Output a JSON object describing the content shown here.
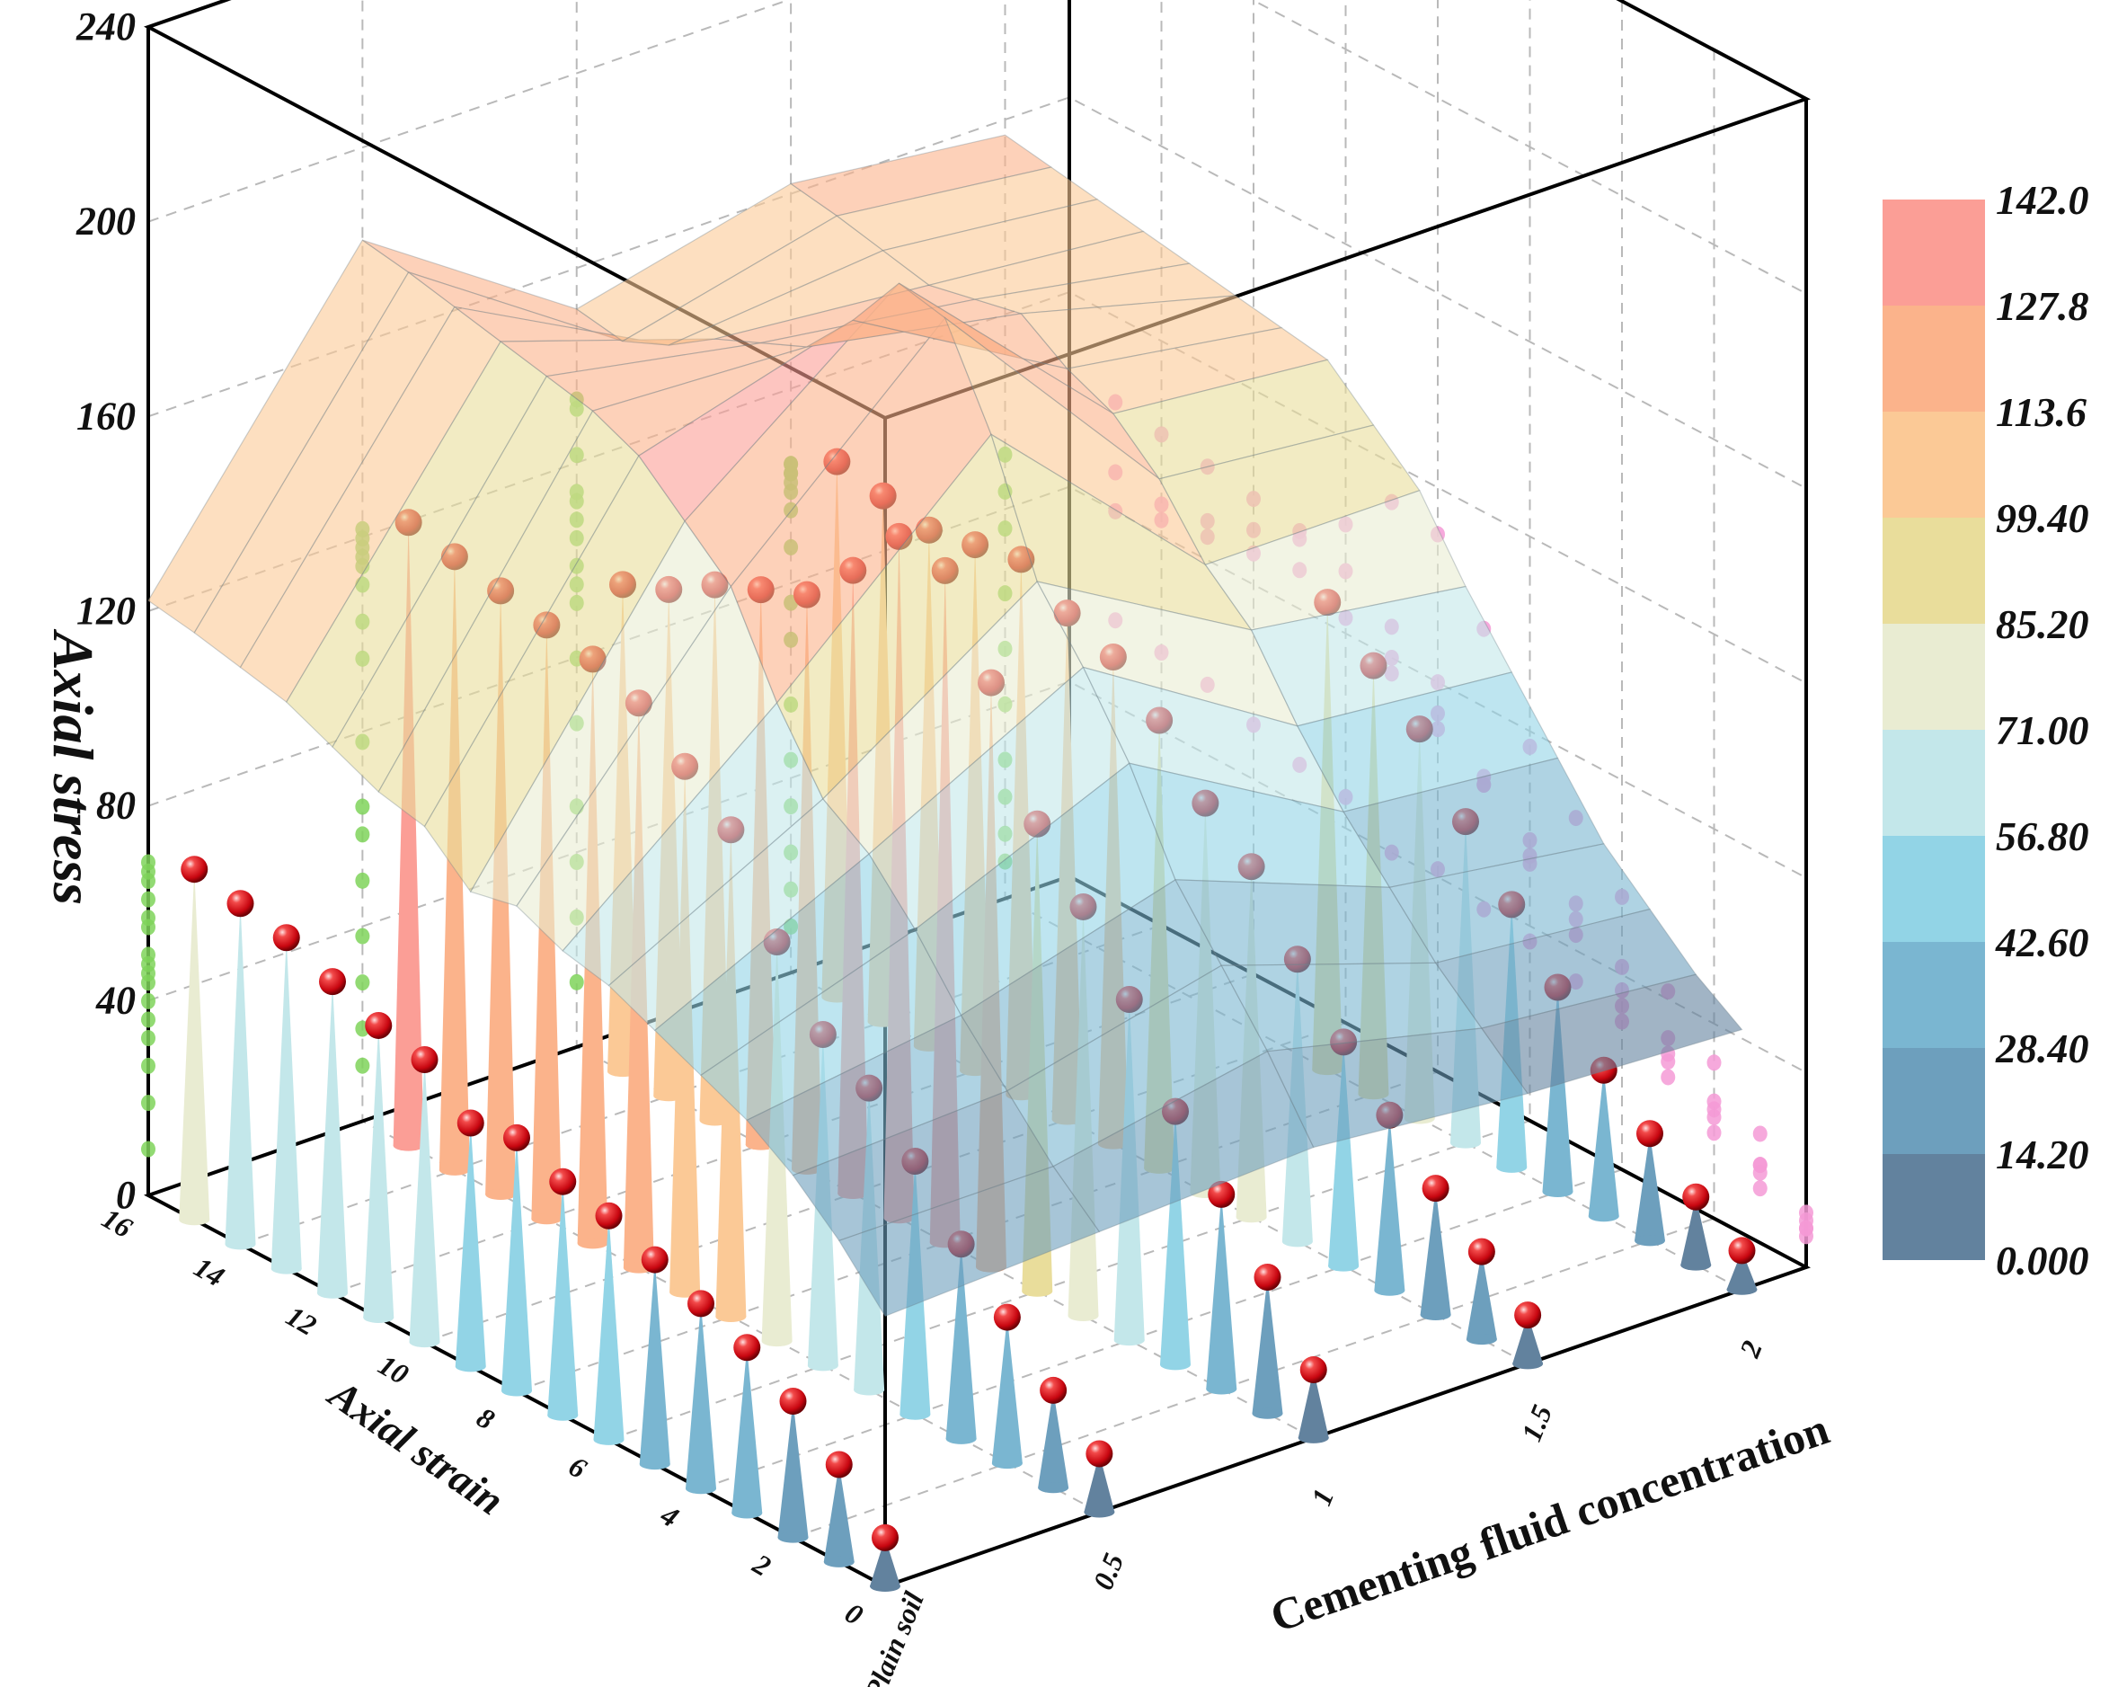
{
  "chart_data": {
    "type": "3d-surface-cone",
    "zlabel": "Axial stress",
    "xlabel": "Axial strain",
    "ylabel": "Cementing fluid concentration",
    "z_ticks": [
      "0",
      "40",
      "80",
      "120",
      "160",
      "200",
      "240"
    ],
    "strain_ticks": [
      "0",
      "2",
      "4",
      "6",
      "8",
      "10",
      "12",
      "14",
      "16"
    ],
    "concentration_ticks": [
      "Plain soil",
      "0.5",
      "1",
      "1.5",
      "2"
    ],
    "zlim": [
      0,
      240
    ],
    "colorbar": {
      "levels": [
        "142.0",
        "127.8",
        "113.6",
        "99.40",
        "85.20",
        "71.00",
        "56.80",
        "42.60",
        "28.40",
        "14.20",
        "0.000"
      ],
      "colors": [
        "#fb9e96",
        "#fbb38b",
        "#fbc996",
        "#e9dd9b",
        "#e9ecd2",
        "#c3e7ea",
        "#92d4e6",
        "#7ab6d1",
        "#6d9fbd",
        "#62829e"
      ]
    },
    "series": [
      {
        "name": "Plain soil",
        "strain": [
          0,
          1,
          2,
          3,
          4,
          5,
          6,
          7,
          8,
          9,
          10,
          11,
          12,
          13,
          14,
          15
        ],
        "stress": [
          10,
          20,
          28,
          34,
          38,
          42,
          46,
          48,
          52,
          50,
          58,
          60,
          64,
          68,
          70,
          72
        ]
      },
      {
        "name": "0.5",
        "strain": [
          0,
          1,
          2,
          3,
          4,
          5,
          6,
          7,
          8,
          9,
          10,
          11,
          12,
          13,
          14,
          15
        ],
        "stress": [
          12,
          20,
          30,
          40,
          52,
          62,
          68,
          82,
          100,
          108,
          116,
          120,
          122,
          124,
          126,
          128
        ]
      },
      {
        "name": "1",
        "strain": [
          0,
          1,
          2,
          3,
          4,
          5,
          6,
          7,
          8,
          9,
          10,
          11,
          12,
          13,
          14,
          15
        ],
        "stress": [
          14,
          28,
          40,
          52,
          70,
          84,
          96,
          120,
          138,
          140,
          128,
          118,
          114,
          110,
          104,
          100
        ]
      },
      {
        "name": "1.5",
        "strain": [
          0,
          1,
          2,
          3,
          4,
          5,
          6,
          7,
          8,
          9,
          10,
          11,
          12,
          13,
          14,
          15
        ],
        "stress": [
          10,
          18,
          26,
          36,
          46,
          58,
          72,
          80,
          92,
          100,
          104,
          110,
          108,
          106,
          108,
          110
        ]
      },
      {
        "name": "2",
        "strain": [
          0,
          1,
          2,
          3,
          4,
          5,
          6,
          7,
          8,
          9
        ],
        "stress": [
          8,
          14,
          22,
          30,
          42,
          54,
          66,
          80,
          88,
          96
        ]
      }
    ]
  }
}
